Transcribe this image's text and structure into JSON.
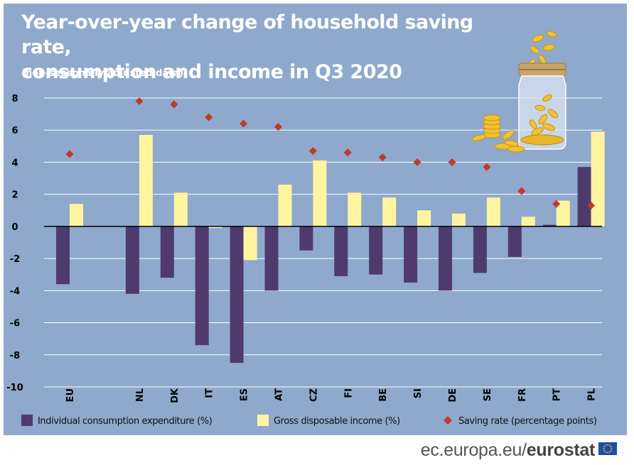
{
  "chart_data": {
    "type": "bar",
    "title_line1": "Year-over-year change of household saving rate,",
    "title_line2": "consumption and income in Q3 2020",
    "subtitle": "(non-seasonally adjusted data)",
    "categories": [
      "EU",
      "NL",
      "DK",
      "IT",
      "ES",
      "AT",
      "CZ",
      "FI",
      "BE",
      "SI",
      "DE",
      "SE",
      "FR",
      "PT",
      "PL"
    ],
    "series": [
      {
        "name": "Individual consumption expenditure (%)",
        "type": "bar",
        "color": "#4F3A6E",
        "values": [
          -3.6,
          -4.2,
          -3.2,
          -7.4,
          -8.5,
          -4.0,
          -1.5,
          -3.1,
          -3.0,
          -3.5,
          -4.0,
          -2.9,
          -1.9,
          0.1,
          3.7
        ]
      },
      {
        "name": "Gross disposable income (%)",
        "type": "bar",
        "color": "#FFF5A0",
        "values": [
          1.4,
          5.7,
          2.1,
          -0.1,
          -2.1,
          2.6,
          4.1,
          2.1,
          1.8,
          1.0,
          0.8,
          1.8,
          0.6,
          1.6,
          5.9
        ]
      },
      {
        "name": "Saving rate (percentage points)",
        "type": "marker",
        "color": "#C0392B",
        "values": [
          4.5,
          7.8,
          7.6,
          6.8,
          6.4,
          6.2,
          4.7,
          4.6,
          4.3,
          4.0,
          4.0,
          3.7,
          2.2,
          1.4,
          1.3
        ]
      }
    ],
    "ylim": [
      -10,
      8
    ],
    "yticks": [
      8,
      6,
      4,
      2,
      0,
      -2,
      -4,
      -6,
      -8,
      -10
    ],
    "xlabel": "",
    "ylabel": "",
    "grid": true,
    "legend_position": "bottom"
  },
  "footer": {
    "site": "ec.europa.eu/",
    "brand": "eurostat"
  },
  "colors": {
    "background": "#8EA9CC",
    "grid": "#ffffff",
    "axis": "#000000"
  }
}
